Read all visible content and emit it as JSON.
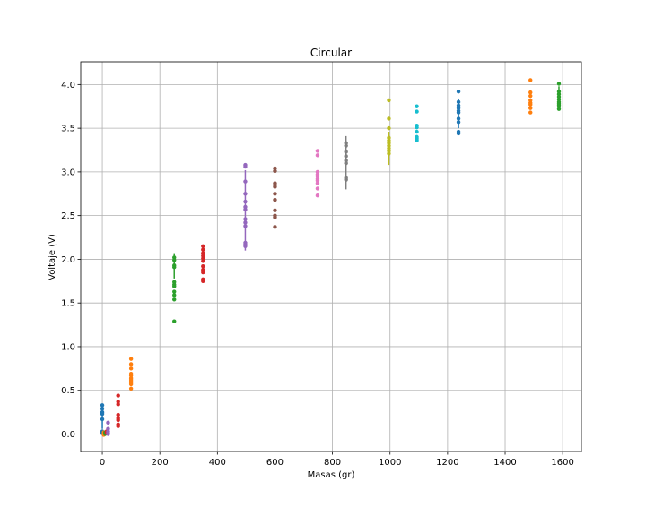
{
  "chart_data": {
    "type": "scatter",
    "title": "Circular",
    "xlabel": "Masas (gr)",
    "ylabel": "Voltaje (V)",
    "xlim": [
      -75,
      1665
    ],
    "ylim": [
      -0.2,
      4.26
    ],
    "xticks": [
      0,
      200,
      400,
      600,
      800,
      1000,
      1200,
      1400,
      1600
    ],
    "yticks": [
      0.0,
      0.5,
      1.0,
      1.5,
      2.0,
      2.5,
      3.0,
      3.5,
      4.0
    ],
    "xtick_labels": [
      "0",
      "200",
      "400",
      "600",
      "800",
      "1000",
      "1200",
      "1400",
      "1600"
    ],
    "ytick_labels": [
      "0.0",
      "0.5",
      "1.0",
      "1.5",
      "2.0",
      "2.5",
      "3.0",
      "3.5",
      "4.0"
    ],
    "grid": true,
    "series": [
      {
        "color": "#1f77b4",
        "points": [
          [
            0,
            0.33
          ],
          [
            0,
            0.29
          ],
          [
            0,
            0.25
          ],
          [
            0,
            0.23
          ],
          [
            0,
            0.17
          ],
          [
            0,
            0.03
          ],
          [
            0,
            0.02
          ],
          [
            0,
            0.01
          ]
        ],
        "error_bars": [
          [
            0,
            0.06,
            0.34
          ]
        ]
      },
      {
        "color": "#ff7f0e",
        "points": [
          [
            5,
            0.02
          ],
          [
            5,
            0.01
          ],
          [
            5,
            0.0
          ],
          [
            5,
            -0.01
          ]
        ]
      },
      {
        "color": "#2ca02c",
        "points": [
          [
            10,
            0.02
          ],
          [
            10,
            0.01
          ],
          [
            10,
            0.0
          ]
        ]
      },
      {
        "color": "#d62728",
        "points": [
          [
            15,
            0.03
          ],
          [
            15,
            0.02
          ],
          [
            15,
            0.01
          ]
        ]
      },
      {
        "color": "#9467bd",
        "points": [
          [
            20,
            0.13
          ],
          [
            20,
            0.06
          ],
          [
            20,
            0.03
          ],
          [
            20,
            0.01
          ],
          [
            20,
            0.0
          ]
        ]
      },
      {
        "color": "#d62728",
        "points": [
          [
            55,
            0.44
          ],
          [
            55,
            0.37
          ],
          [
            55,
            0.34
          ],
          [
            55,
            0.22
          ],
          [
            55,
            0.18
          ],
          [
            55,
            0.16
          ],
          [
            55,
            0.11
          ],
          [
            55,
            0.09
          ]
        ]
      },
      {
        "color": "#ff7f0e",
        "points": [
          [
            100,
            0.86
          ],
          [
            100,
            0.8
          ],
          [
            100,
            0.75
          ],
          [
            100,
            0.69
          ],
          [
            100,
            0.67
          ],
          [
            100,
            0.64
          ],
          [
            100,
            0.62
          ],
          [
            100,
            0.6
          ],
          [
            100,
            0.57
          ],
          [
            100,
            0.52
          ]
        ]
      },
      {
        "color": "#2ca02c",
        "points": [
          [
            250,
            2.02
          ],
          [
            250,
            1.99
          ],
          [
            250,
            1.93
          ],
          [
            250,
            1.91
          ],
          [
            250,
            1.74
          ],
          [
            250,
            1.71
          ],
          [
            250,
            1.69
          ],
          [
            250,
            1.63
          ],
          [
            250,
            1.59
          ],
          [
            250,
            1.54
          ],
          [
            250,
            1.29
          ]
        ],
        "error_bars": [
          [
            250,
            1.78,
            2.07
          ]
        ]
      },
      {
        "color": "#d62728",
        "points": [
          [
            350,
            2.15
          ],
          [
            350,
            2.11
          ],
          [
            350,
            2.07
          ],
          [
            350,
            2.04
          ],
          [
            350,
            2.01
          ],
          [
            350,
            1.98
          ],
          [
            350,
            1.92
          ],
          [
            350,
            1.88
          ],
          [
            350,
            1.85
          ],
          [
            350,
            1.77
          ],
          [
            350,
            1.75
          ]
        ]
      },
      {
        "color": "#9467bd",
        "points": [
          [
            497,
            3.08
          ],
          [
            497,
            3.06
          ],
          [
            497,
            2.89
          ],
          [
            497,
            2.75
          ],
          [
            497,
            2.66
          ],
          [
            497,
            2.6
          ],
          [
            497,
            2.57
          ],
          [
            497,
            2.46
          ],
          [
            497,
            2.42
          ],
          [
            497,
            2.38
          ],
          [
            497,
            2.19
          ],
          [
            497,
            2.17
          ],
          [
            497,
            2.15
          ]
        ],
        "error_bars": [
          [
            497,
            2.1,
            3.02
          ]
        ]
      },
      {
        "color": "#8c564b",
        "points": [
          [
            600,
            3.04
          ],
          [
            600,
            3.01
          ],
          [
            600,
            2.87
          ],
          [
            600,
            2.85
          ],
          [
            600,
            2.83
          ],
          [
            600,
            2.75
          ],
          [
            600,
            2.68
          ],
          [
            600,
            2.56
          ],
          [
            600,
            2.5
          ],
          [
            600,
            2.48
          ],
          [
            600,
            2.37
          ]
        ]
      },
      {
        "color": "#e377c2",
        "points": [
          [
            748,
            3.24
          ],
          [
            748,
            3.19
          ],
          [
            748,
            3.0
          ],
          [
            748,
            2.97
          ],
          [
            748,
            2.95
          ],
          [
            748,
            2.92
          ],
          [
            748,
            2.9
          ],
          [
            748,
            2.87
          ],
          [
            748,
            2.81
          ],
          [
            748,
            2.73
          ]
        ]
      },
      {
        "color": "#7f7f7f",
        "points": [
          [
            847,
            3.33
          ],
          [
            847,
            3.3
          ],
          [
            847,
            3.23
          ],
          [
            847,
            3.18
          ],
          [
            847,
            3.13
          ],
          [
            847,
            3.1
          ],
          [
            847,
            2.93
          ],
          [
            847,
            2.91
          ]
        ],
        "error_bars": [
          [
            847,
            2.8,
            3.41
          ]
        ]
      },
      {
        "color": "#bcbd22",
        "points": [
          [
            996,
            3.82
          ],
          [
            996,
            3.61
          ],
          [
            996,
            3.5
          ],
          [
            996,
            3.39
          ],
          [
            996,
            3.36
          ],
          [
            996,
            3.33
          ],
          [
            996,
            3.3
          ],
          [
            996,
            3.27
          ],
          [
            996,
            3.24
          ],
          [
            996,
            3.21
          ]
        ],
        "error_bars": [
          [
            996,
            3.08,
            3.46
          ]
        ]
      },
      {
        "color": "#17becf",
        "points": [
          [
            1093,
            3.75
          ],
          [
            1093,
            3.69
          ],
          [
            1093,
            3.53
          ],
          [
            1093,
            3.51
          ],
          [
            1093,
            3.46
          ],
          [
            1093,
            3.4
          ],
          [
            1093,
            3.38
          ],
          [
            1093,
            3.36
          ]
        ]
      },
      {
        "color": "#1f77b4",
        "points": [
          [
            1238,
            3.92
          ],
          [
            1238,
            3.8
          ],
          [
            1238,
            3.76
          ],
          [
            1238,
            3.73
          ],
          [
            1238,
            3.7
          ],
          [
            1238,
            3.68
          ],
          [
            1238,
            3.61
          ],
          [
            1238,
            3.57
          ],
          [
            1238,
            3.46
          ],
          [
            1238,
            3.44
          ]
        ],
        "error_bars": [
          [
            1238,
            3.5,
            3.84
          ]
        ]
      },
      {
        "color": "#ff7f0e",
        "points": [
          [
            1488,
            4.05
          ],
          [
            1488,
            3.91
          ],
          [
            1488,
            3.87
          ],
          [
            1488,
            3.82
          ],
          [
            1488,
            3.79
          ],
          [
            1488,
            3.77
          ],
          [
            1488,
            3.73
          ],
          [
            1488,
            3.68
          ]
        ]
      },
      {
        "color": "#2ca02c",
        "points": [
          [
            1587,
            4.01
          ],
          [
            1587,
            3.92
          ],
          [
            1587,
            3.89
          ],
          [
            1587,
            3.86
          ],
          [
            1587,
            3.83
          ],
          [
            1587,
            3.8
          ],
          [
            1587,
            3.78
          ],
          [
            1587,
            3.76
          ],
          [
            1587,
            3.72
          ]
        ],
        "error_bars": [
          [
            1587,
            3.75,
            3.98
          ]
        ]
      }
    ]
  }
}
